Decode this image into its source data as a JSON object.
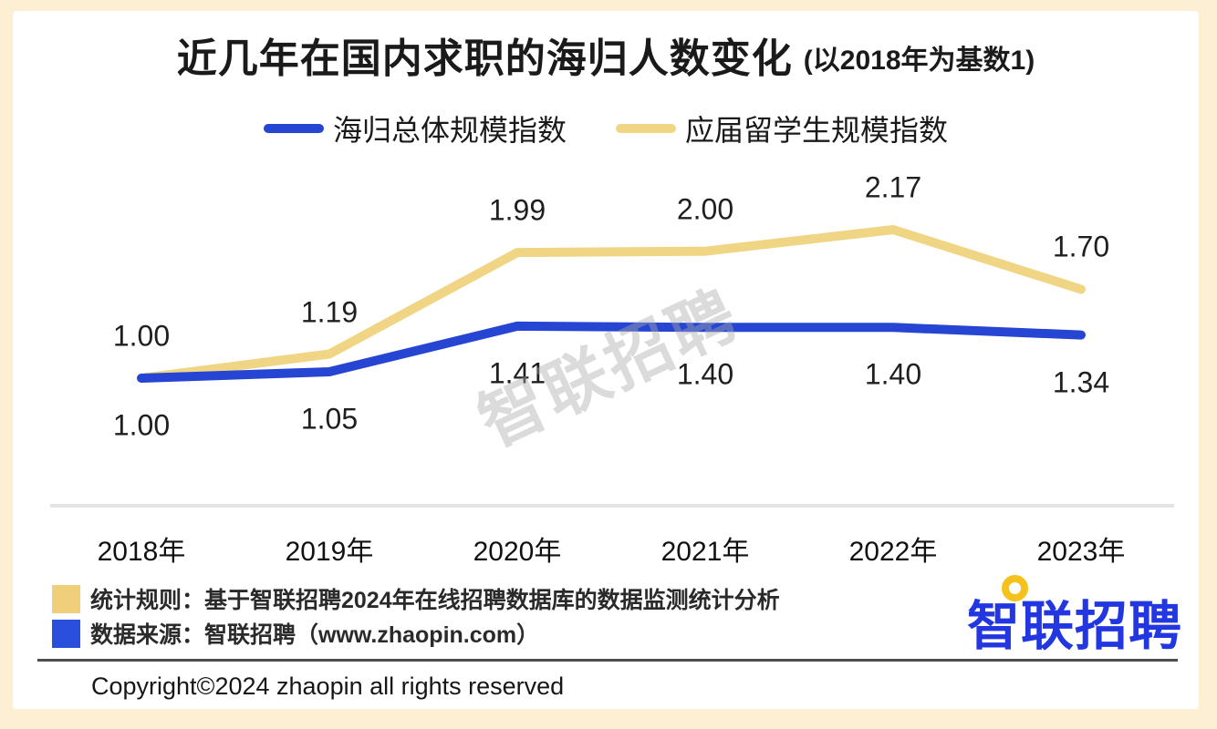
{
  "page": {
    "title_main": "近几年在国内求职的海归人数变化",
    "title_sub": "(以2018年为基数1)",
    "watermark": "智联招聘",
    "logo_text": "智联招聘",
    "copyright": "Copyright©2024 zhaopin all rights reserved"
  },
  "legend": {
    "items": [
      {
        "label": "海归总体规模指数",
        "color": "#2545d2"
      },
      {
        "label": "应届留学生规模指数",
        "color": "#f0d585"
      }
    ]
  },
  "footnotes": {
    "items": [
      {
        "swatch_color": "#efcf79",
        "text": "统计规则：基于智联招聘2024年在线招聘数据库的数据监测统计分析"
      },
      {
        "swatch_color": "#2b4fdd",
        "text": "数据来源：智联招聘（www.zhaopin.com）"
      }
    ]
  },
  "colors": {
    "blue_line": "#2545d2",
    "yellow_line": "#f0d585",
    "logo_blue": "#2337e0",
    "logo_yellow": "#f5c21d",
    "frame_cream": "#fcefd4",
    "axis_gray": "#e3e3e3"
  },
  "chart_data": {
    "type": "line",
    "title": "近几年在国内求职的海归人数变化 (以2018年为基数1)",
    "baseline_note": "以2018年为基数1",
    "categories": [
      "2018年",
      "2019年",
      "2020年",
      "2021年",
      "2022年",
      "2023年"
    ],
    "series": [
      {
        "name": "海归总体规模指数",
        "color": "#2545d2",
        "values": [
          1.0,
          1.05,
          1.41,
          1.4,
          1.4,
          1.34
        ],
        "label_position": "below"
      },
      {
        "name": "应届留学生规模指数",
        "color": "#f0d585",
        "values": [
          1.0,
          1.19,
          1.99,
          2.0,
          2.17,
          1.7
        ],
        "label_position": "above"
      }
    ],
    "value_labels": true,
    "ylim": [
      0.9,
      2.4
    ],
    "grid": false,
    "legend_position": "top"
  }
}
